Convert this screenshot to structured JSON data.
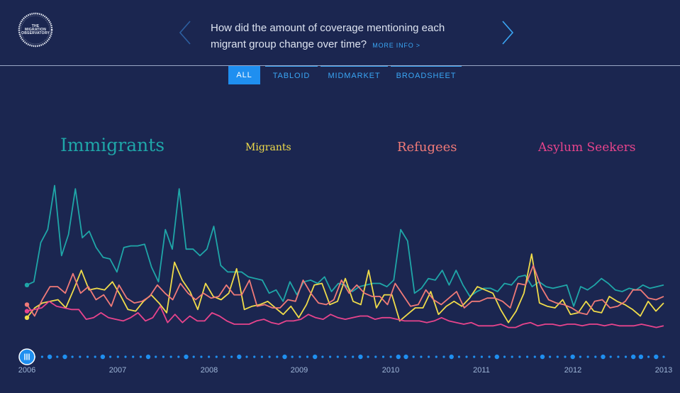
{
  "logo": {
    "text_line1": "THE",
    "text_line2": "MIGRATION",
    "text_line3": "OBSERVATORY",
    "icon": "migration-observatory-logo"
  },
  "header": {
    "question": "How did the amount of coverage mentioning each migrant group change over time?",
    "more_info": "MORE INFO >",
    "prev_icon": "chevron-left-icon",
    "next_icon": "chevron-right-icon"
  },
  "tabs": [
    {
      "label": "ALL",
      "active": true
    },
    {
      "label": "TABLOID",
      "active": false
    },
    {
      "label": "MIDMARKET",
      "active": false
    },
    {
      "label": "BROADSHEET",
      "active": false
    }
  ],
  "timeline": {
    "years": [
      "2006",
      "2007",
      "2008",
      "2009",
      "2010",
      "2011",
      "2012",
      "2013"
    ],
    "play_icon": "pause-icon"
  },
  "colors": {
    "background": "#1b2650",
    "accent": "#1f8ff0",
    "immigrants": "#1fa6a8",
    "migrants": "#f0dc4a",
    "refugees": "#f07a78",
    "asylum_seekers": "#e8448c"
  },
  "chart_data": {
    "type": "line",
    "x_start": "2006-01",
    "x_end": "2013-01",
    "interval": "monthly",
    "title": "",
    "xlabel": "",
    "ylabel": "",
    "grid": false,
    "series": [
      {
        "name": "Immigrants",
        "color": "#1fa6a8",
        "values": [
          0.34,
          0.36,
          0.6,
          0.68,
          0.95,
          0.52,
          0.65,
          0.93,
          0.63,
          0.67,
          0.57,
          0.51,
          0.5,
          0.42,
          0.57,
          0.58,
          0.58,
          0.59,
          0.45,
          0.36,
          0.68,
          0.56,
          0.93,
          0.56,
          0.56,
          0.52,
          0.56,
          0.7,
          0.46,
          0.42,
          0.42,
          0.42,
          0.39,
          0.38,
          0.37,
          0.29,
          0.31,
          0.24,
          0.36,
          0.28,
          0.36,
          0.37,
          0.35,
          0.39,
          0.3,
          0.35,
          0.34,
          0.3,
          0.33,
          0.34,
          0.35,
          0.35,
          0.33,
          0.37,
          0.68,
          0.61,
          0.29,
          0.32,
          0.38,
          0.37,
          0.43,
          0.34,
          0.43,
          0.34,
          0.27,
          0.3,
          0.32,
          0.32,
          0.3,
          0.35,
          0.34,
          0.39,
          0.4,
          0.33,
          0.36,
          0.33,
          0.32,
          0.33,
          0.34,
          0.21,
          0.33,
          0.31,
          0.34,
          0.38,
          0.35,
          0.31,
          0.3,
          0.32,
          0.31,
          0.34,
          0.32,
          0.33,
          0.34
        ]
      },
      {
        "name": "Migrants",
        "color": "#f0dc4a",
        "values": [
          0.14,
          0.2,
          0.23,
          0.24,
          0.25,
          0.2,
          0.31,
          0.43,
          0.31,
          0.32,
          0.31,
          0.36,
          0.28,
          0.19,
          0.18,
          0.24,
          0.28,
          0.23,
          0.17,
          0.48,
          0.37,
          0.3,
          0.19,
          0.35,
          0.27,
          0.25,
          0.29,
          0.44,
          0.19,
          0.21,
          0.22,
          0.24,
          0.2,
          0.16,
          0.21,
          0.14,
          0.22,
          0.34,
          0.35,
          0.22,
          0.24,
          0.38,
          0.24,
          0.22,
          0.43,
          0.2,
          0.28,
          0.28,
          0.12,
          0.16,
          0.2,
          0.2,
          0.3,
          0.16,
          0.21,
          0.24,
          0.21,
          0.26,
          0.33,
          0.31,
          0.29,
          0.19,
          0.11,
          0.18,
          0.29,
          0.53,
          0.23,
          0.21,
          0.2,
          0.25,
          0.16,
          0.17,
          0.24,
          0.18,
          0.17,
          0.27,
          0.24,
          0.22,
          0.19,
          0.15,
          0.24,
          0.18,
          0.23
        ]
      },
      {
        "name": "Refugees",
        "color": "#f07a78",
        "values": [
          0.22,
          0.15,
          0.25,
          0.33,
          0.33,
          0.29,
          0.41,
          0.29,
          0.33,
          0.25,
          0.28,
          0.21,
          0.34,
          0.26,
          0.23,
          0.24,
          0.27,
          0.34,
          0.29,
          0.25,
          0.35,
          0.29,
          0.25,
          0.29,
          0.26,
          0.27,
          0.34,
          0.28,
          0.28,
          0.37,
          0.21,
          0.22,
          0.2,
          0.2,
          0.25,
          0.24,
          0.37,
          0.29,
          0.23,
          0.22,
          0.25,
          0.37,
          0.29,
          0.34,
          0.29,
          0.27,
          0.27,
          0.22,
          0.35,
          0.28,
          0.21,
          0.22,
          0.31,
          0.25,
          0.22,
          0.26,
          0.3,
          0.2,
          0.24,
          0.24,
          0.26,
          0.26,
          0.24,
          0.2,
          0.35,
          0.34,
          0.46,
          0.33,
          0.25,
          0.23,
          0.22,
          0.2,
          0.17,
          0.16,
          0.24,
          0.25,
          0.2,
          0.21,
          0.24,
          0.31,
          0.31,
          0.26,
          0.25,
          0.27
        ]
      },
      {
        "name": "Asylum Seekers",
        "color": "#e8448c",
        "values": [
          0.18,
          0.19,
          0.2,
          0.24,
          0.21,
          0.2,
          0.19,
          0.19,
          0.13,
          0.14,
          0.17,
          0.14,
          0.13,
          0.12,
          0.14,
          0.17,
          0.12,
          0.14,
          0.21,
          0.11,
          0.16,
          0.11,
          0.15,
          0.12,
          0.12,
          0.17,
          0.15,
          0.12,
          0.1,
          0.1,
          0.1,
          0.12,
          0.13,
          0.11,
          0.1,
          0.12,
          0.12,
          0.13,
          0.16,
          0.14,
          0.13,
          0.16,
          0.14,
          0.13,
          0.14,
          0.15,
          0.15,
          0.13,
          0.14,
          0.14,
          0.13,
          0.12,
          0.12,
          0.12,
          0.11,
          0.12,
          0.14,
          0.12,
          0.11,
          0.1,
          0.11,
          0.09,
          0.09,
          0.09,
          0.1,
          0.08,
          0.08,
          0.1,
          0.11,
          0.09,
          0.1,
          0.1,
          0.09,
          0.1,
          0.1,
          0.09,
          0.1,
          0.1,
          0.09,
          0.1,
          0.09,
          0.09,
          0.09,
          0.1,
          0.09,
          0.08,
          0.09
        ]
      }
    ],
    "series_labels": [
      "Immigrants",
      "Migrants",
      "Refugees",
      "Asylum Seekers"
    ],
    "x_tick_labels": [
      "2006",
      "2007",
      "2008",
      "2009",
      "2010",
      "2011",
      "2012",
      "2013"
    ]
  }
}
